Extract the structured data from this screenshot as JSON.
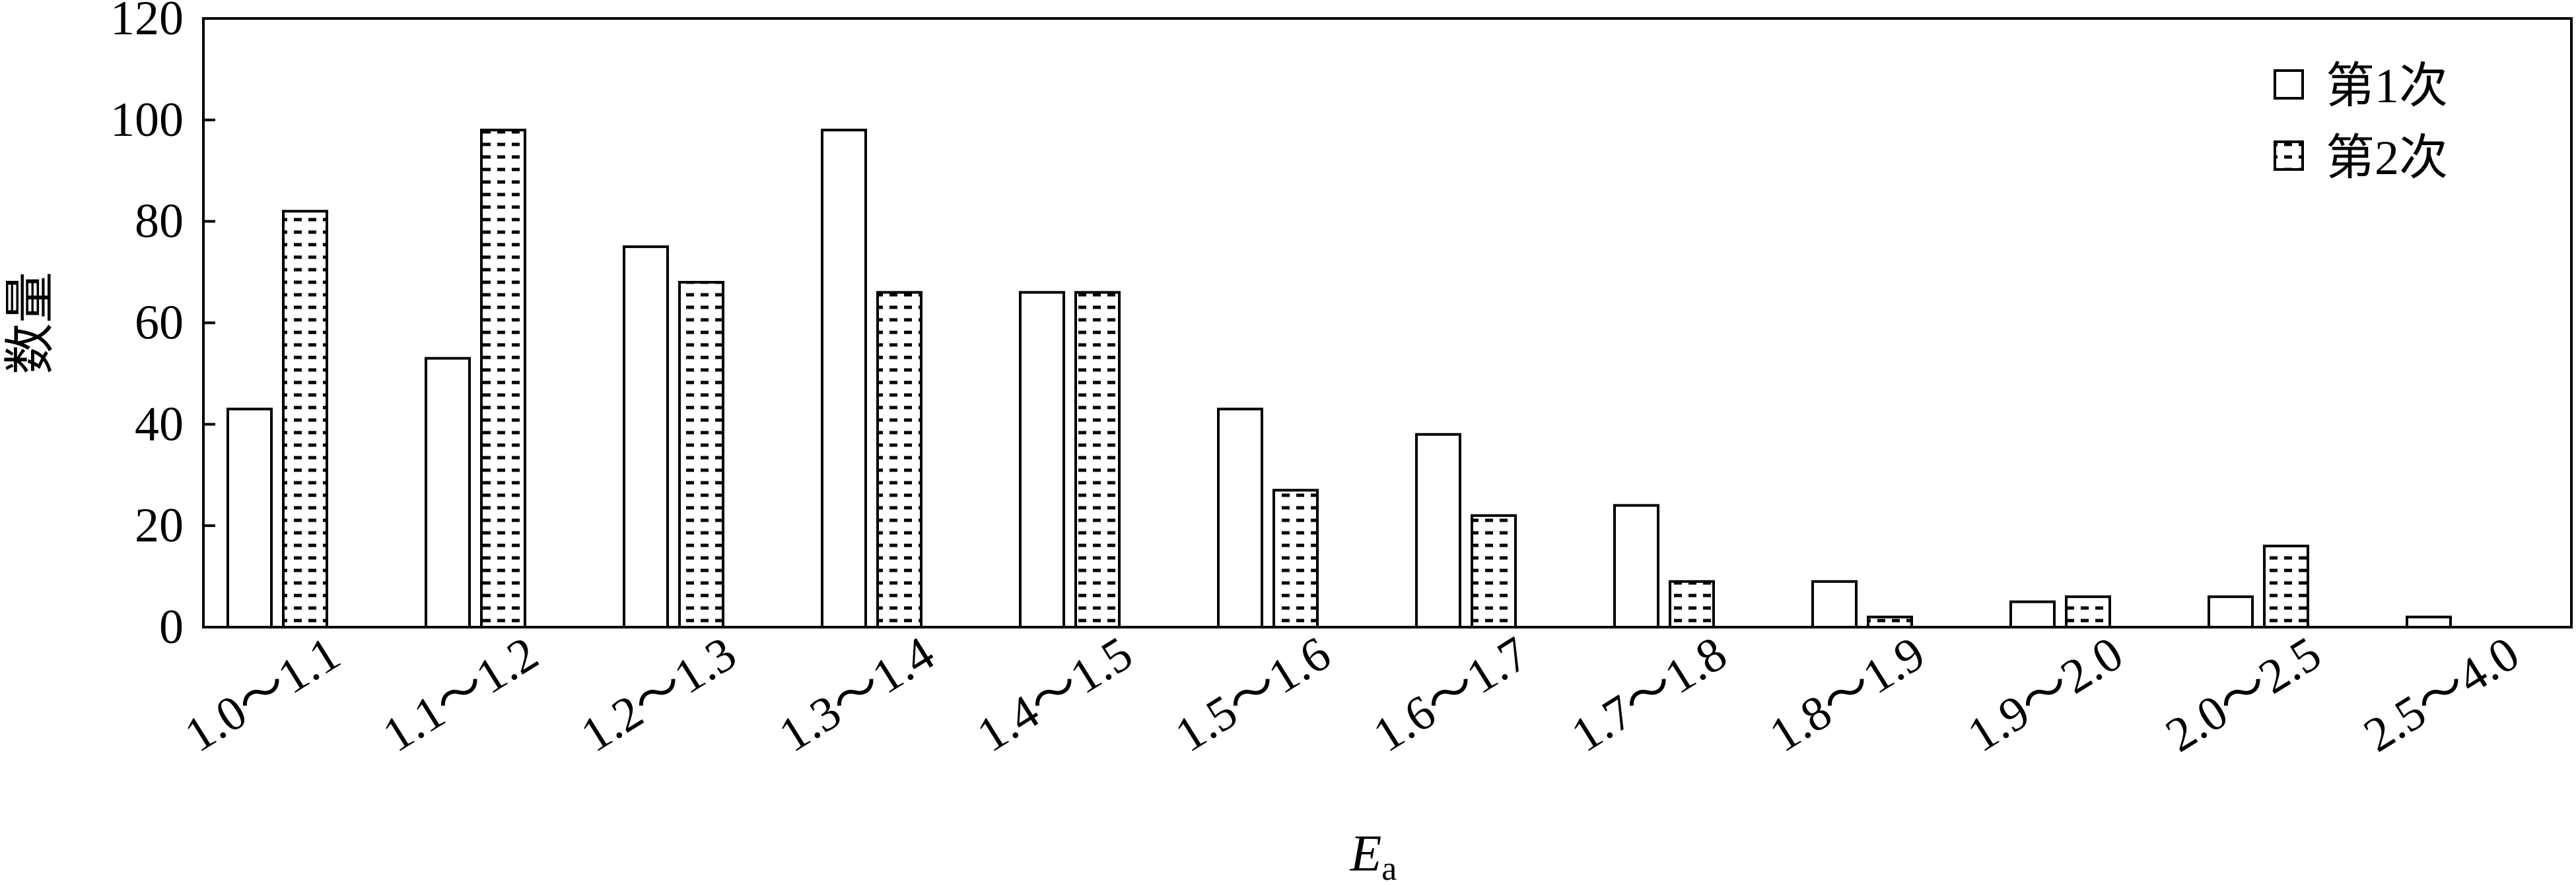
{
  "chart_data": {
    "type": "bar",
    "categories": [
      "1.0～1.1",
      "1.1～1.2",
      "1.2～1.3",
      "1.3～1.4",
      "1.4～1.5",
      "1.5～1.6",
      "1.6～1.7",
      "1.7～1.8",
      "1.8～1.9",
      "1.9～2.0",
      "2.0～2.5",
      "2.5～4.0"
    ],
    "series": [
      {
        "name": "第1次",
        "pattern": "plain",
        "values": [
          43,
          53,
          75,
          98,
          66,
          43,
          38,
          24,
          9,
          5,
          6,
          2
        ]
      },
      {
        "name": "第2次",
        "pattern": "dashed-hatch",
        "values": [
          82,
          98,
          68,
          66,
          66,
          27,
          22,
          9,
          2,
          6,
          16,
          0
        ]
      }
    ],
    "xlabel": "E",
    "xlabel_sub": "a",
    "ylabel": "数量",
    "ylim": [
      0,
      120
    ],
    "yticks": [
      "0",
      "20",
      "40",
      "60",
      "80",
      "100",
      "120"
    ],
    "grid": false,
    "legend_position": "top-right",
    "colors": {
      "bar_fill": "#ffffff",
      "stroke": "#000000"
    }
  }
}
